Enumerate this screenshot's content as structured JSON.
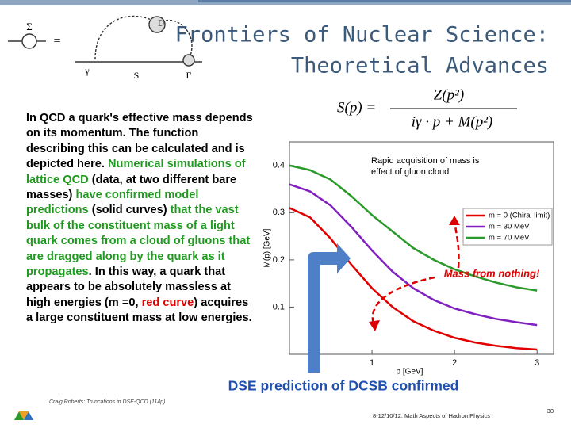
{
  "slide": {
    "title_lines": [
      "Frontiers of Nuclear Science:",
      "Theoretical Advances"
    ],
    "diagram_labels": [
      "Σ",
      "=",
      "D",
      "γ",
      "S",
      "Γ"
    ],
    "formula": {
      "lhs": "S(p) =",
      "numerator": "Z(p²)",
      "denominator": "iγ · p + M(p²)"
    },
    "paragraph": [
      {
        "text": "In QCD a quark's effective mass depends on its momentum. The function describing this can be calculated and is depicted here. ",
        "color": "#000000"
      },
      {
        "text": "Numerical simulations of lattice QCD",
        "color": "#1e9a1e"
      },
      {
        "text": " (data, at two different bare masses) ",
        "color": "#000000"
      },
      {
        "text": "have confirmed model predictions",
        "color": "#1e9a1e"
      },
      {
        "text": " (solid curves) ",
        "color": "#000000"
      },
      {
        "text": "that the vast bulk of the constituent mass of a light quark comes from a cloud of gluons that are dragged along by the quark as it propagates",
        "color": "#1e9a1e"
      },
      {
        "text": ". In this way, a quark that appears to be absolutely massless at high energies (m =0, ",
        "color": "#000000"
      },
      {
        "text": "red curve",
        "color": "#e00000"
      },
      {
        "text": ") acquires a large constituent mass at low energies.",
        "color": "#000000"
      }
    ],
    "caption": "DSE prediction of DCSB confirmed",
    "footer_left": "Craig Roberts: Truncations in DSE-QCD (114p)",
    "footer_center": "8-12/10/12: Math Aspects of Hadron Physics",
    "page_number": "30"
  },
  "chart_data": {
    "type": "line",
    "xlabel": "p [GeV]",
    "ylabel": "M(p) [GeV]",
    "annotation": "Rapid acquisition of mass is effect of gluon cloud",
    "callout": "Mass from nothing!",
    "x": [
      0,
      0.25,
      0.5,
      0.75,
      1,
      1.25,
      1.5,
      1.75,
      2,
      2.25,
      2.5,
      2.75,
      3
    ],
    "series": [
      {
        "name": "m = 0 (Chiral limit)",
        "color": "#e00000",
        "values": [
          0.31,
          0.29,
          0.245,
          0.19,
          0.14,
          0.1,
          0.07,
          0.05,
          0.035,
          0.025,
          0.018,
          0.013,
          0.01
        ]
      },
      {
        "name": "m = 30 MeV",
        "color": "#8020c0",
        "values": [
          0.36,
          0.345,
          0.315,
          0.27,
          0.22,
          0.175,
          0.14,
          0.115,
          0.097,
          0.085,
          0.075,
          0.068,
          0.062
        ]
      },
      {
        "name": "m = 70 MeV",
        "color": "#2a9a2a",
        "values": [
          0.4,
          0.39,
          0.37,
          0.335,
          0.295,
          0.26,
          0.225,
          0.2,
          0.18,
          0.165,
          0.152,
          0.142,
          0.135
        ]
      }
    ],
    "xlim": [
      0,
      3.2
    ],
    "ylim": [
      0,
      0.45
    ],
    "xticks": [
      1,
      2,
      3
    ],
    "yticks": [
      0.1,
      0.2,
      0.3,
      0.4
    ]
  }
}
